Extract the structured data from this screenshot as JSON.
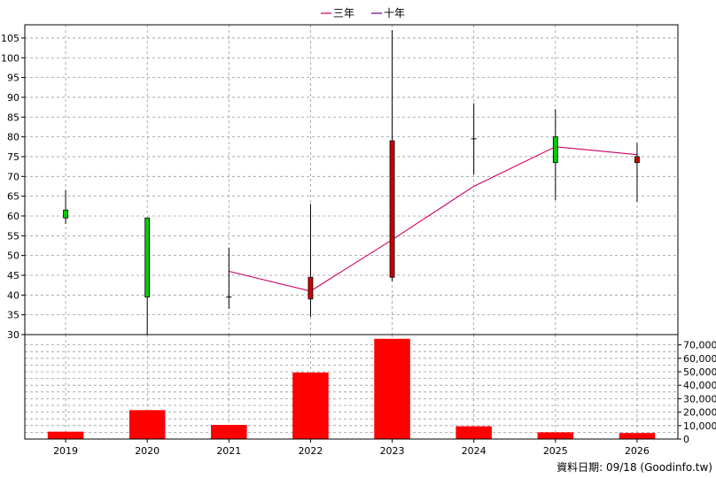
{
  "legend": {
    "items": [
      {
        "label": "三年",
        "color": "#CC0066"
      },
      {
        "label": "十年",
        "color": "#660099"
      }
    ]
  },
  "footer": {
    "source_note": "資料日期: 09/18  (Goodinfo.tw)"
  },
  "colors": {
    "up": "#00CC00",
    "down": "#CC0000",
    "volume": "#FF0000",
    "grid": "#999999",
    "wick": "#000000"
  },
  "chart_data": [
    {
      "type": "candlestick",
      "categories": [
        "2019",
        "2020",
        "2021",
        "2022",
        "2023",
        "2024",
        "2025",
        "2026"
      ],
      "ylim": [
        30,
        107
      ],
      "yticks": [
        30,
        35,
        40,
        45,
        50,
        55,
        60,
        65,
        70,
        75,
        80,
        85,
        90,
        95,
        100,
        105
      ],
      "candles": [
        {
          "x": "2019",
          "open": 59.5,
          "high": 66.5,
          "low": 58.0,
          "close": 61.5
        },
        {
          "x": "2020",
          "open": 39.5,
          "high": 59.5,
          "low": 30.0,
          "close": 59.5
        },
        {
          "x": "2021",
          "open": 39.5,
          "high": 52.0,
          "low": 36.5,
          "close": 39.5
        },
        {
          "x": "2022",
          "open": 44.5,
          "high": 63.0,
          "low": 34.5,
          "close": 39.0
        },
        {
          "x": "2023",
          "open": 79.0,
          "high": 107.0,
          "low": 43.5,
          "close": 44.5
        },
        {
          "x": "2024",
          "open": 79.5,
          "high": 88.5,
          "low": 70.5,
          "close": 79.5
        },
        {
          "x": "2025",
          "open": 73.5,
          "high": 87.0,
          "low": 64.0,
          "close": 80.0
        },
        {
          "x": "2026",
          "open": 75.0,
          "high": 78.5,
          "low": 63.5,
          "close": 73.5
        }
      ],
      "series": [
        {
          "name": "三年",
          "x": [
            "2021",
            "2022",
            "2023",
            "2024",
            "2025",
            "2026"
          ],
          "values": [
            46.0,
            41.0,
            54.0,
            67.5,
            77.5,
            75.5
          ]
        }
      ]
    },
    {
      "type": "bar",
      "categories": [
        "2019",
        "2020",
        "2021",
        "2022",
        "2023",
        "2024",
        "2025",
        "2026"
      ],
      "values": [
        5500,
        21500,
        10500,
        49500,
        74500,
        9500,
        5000,
        4500
      ],
      "ylim": [
        0,
        75000
      ],
      "yticks": [
        0,
        10000,
        20000,
        30000,
        40000,
        50000,
        60000,
        70000
      ],
      "ytick_labels": [
        "0",
        "10,000",
        "20,000",
        "30,000",
        "40,000",
        "50,000",
        "60,000",
        "70,000"
      ]
    }
  ]
}
